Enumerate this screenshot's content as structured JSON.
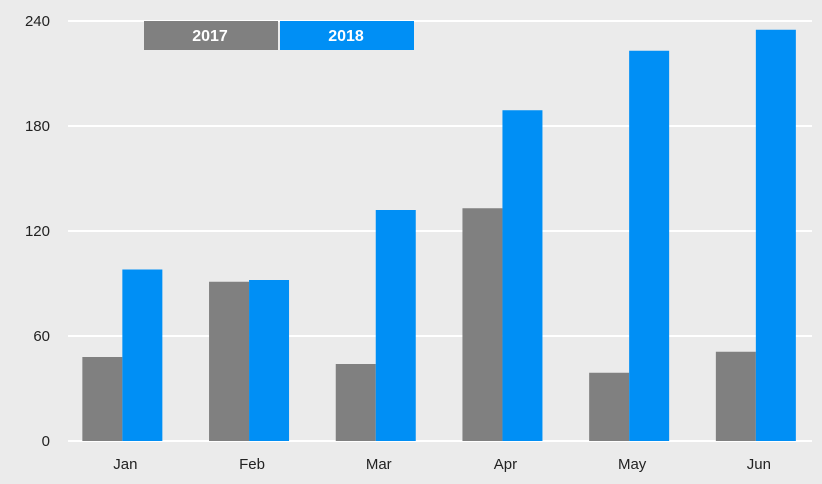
{
  "chart_data": {
    "type": "bar",
    "categories": [
      "Jan",
      "Feb",
      "Mar",
      "Apr",
      "May",
      "Jun"
    ],
    "series": [
      {
        "name": "2017",
        "color": "#808080",
        "values": [
          48,
          91,
          44,
          133,
          39,
          51
        ]
      },
      {
        "name": "2018",
        "color": "#008ff5",
        "values": [
          98,
          92,
          132,
          189,
          223,
          235
        ]
      }
    ],
    "ylim": [
      0,
      240
    ],
    "yticks": [
      0,
      60,
      120,
      180,
      240
    ],
    "grid": true,
    "legend_position": "top-left"
  }
}
